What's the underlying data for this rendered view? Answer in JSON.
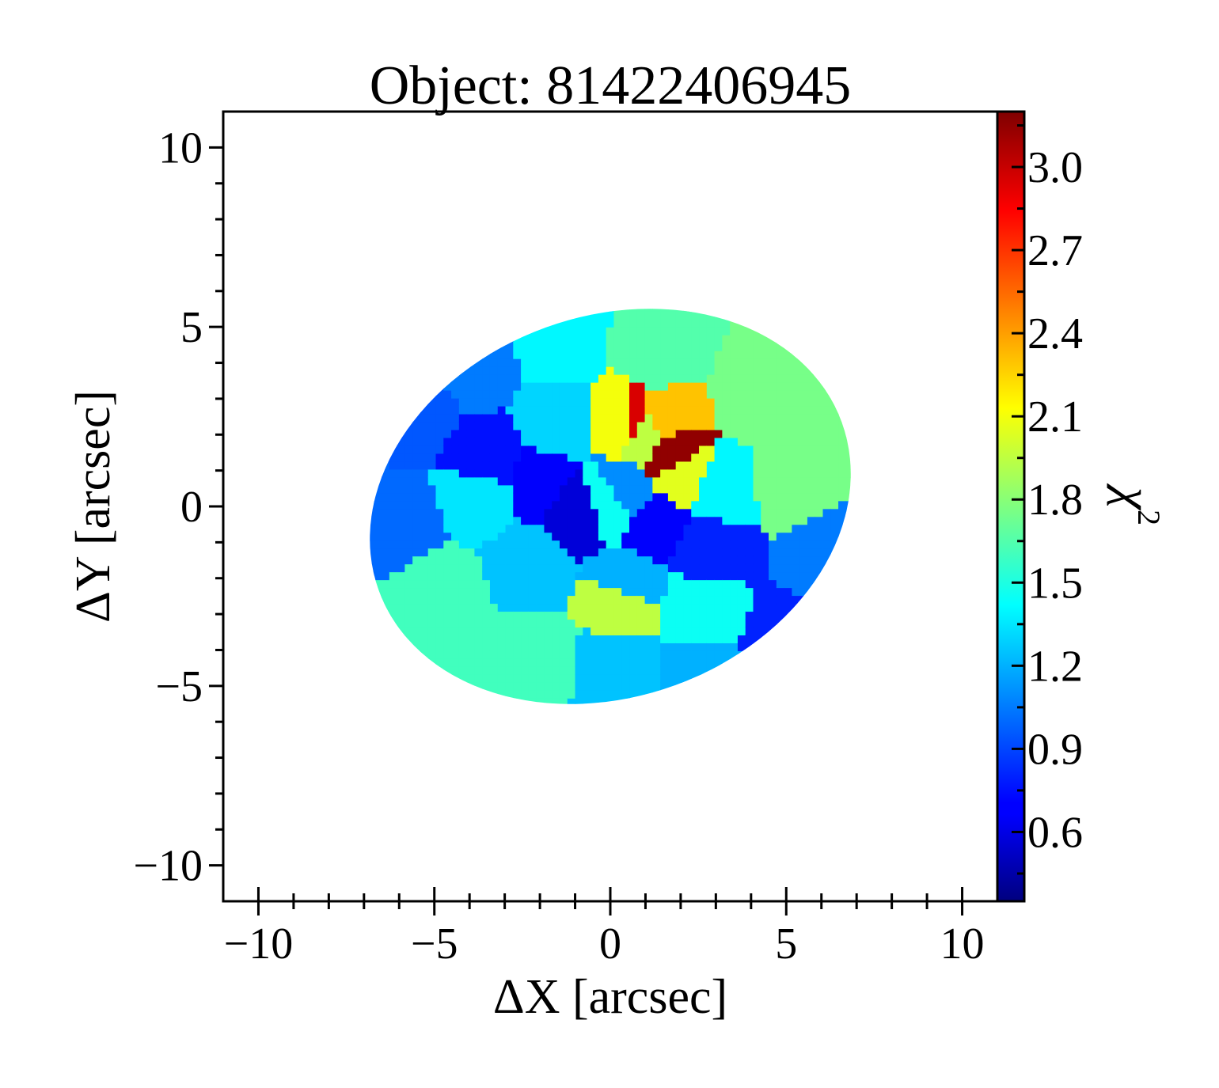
{
  "chart_data": {
    "type": "heatmap",
    "title": "Object: 81422406945",
    "xlabel": "ΔX [arcsec]",
    "ylabel": "ΔY [arcsec]",
    "colorbar_label": "χ",
    "colorbar_label_superscript": "2",
    "xlim": [
      -11,
      11
    ],
    "ylim": [
      -11,
      11
    ],
    "x_ticks": [
      -10,
      -5,
      0,
      5,
      10
    ],
    "x_tick_labels": [
      "−10",
      "−5",
      "0",
      "5",
      "10"
    ],
    "y_ticks": [
      -10,
      -5,
      0,
      5,
      10
    ],
    "y_tick_labels": [
      "−10",
      "−5",
      "0",
      "5",
      "10"
    ],
    "colorbar_range": [
      0.35,
      3.2
    ],
    "colorbar_ticks": [
      0.6,
      0.9,
      1.2,
      1.5,
      1.8,
      2.1,
      2.4,
      2.7,
      3.0
    ],
    "colorbar_tick_labels": [
      "0.6",
      "0.9",
      "1.2",
      "1.5",
      "1.8",
      "2.1",
      "2.4",
      "2.7",
      "3.0"
    ],
    "colormap": "jet",
    "map_region": {
      "shape": "ellipse",
      "center": [
        0.0,
        0.0
      ],
      "semi_major": 7.0,
      "semi_minor": 5.3,
      "angle_deg": -20
    },
    "bins": [
      {
        "x": -5.6,
        "y": 2.6,
        "value": 0.95
      },
      {
        "x": -6.0,
        "y": -0.4,
        "value": 1.0
      },
      {
        "x": -3.8,
        "y": 4.0,
        "value": 1.05
      },
      {
        "x": -1.6,
        "y": 4.5,
        "value": 1.4
      },
      {
        "x": 1.5,
        "y": 4.3,
        "value": 1.65
      },
      {
        "x": 4.2,
        "y": 3.2,
        "value": 1.75
      },
      {
        "x": 5.2,
        "y": 0.8,
        "value": 1.75
      },
      {
        "x": 6.3,
        "y": -1.5,
        "value": 1.05
      },
      {
        "x": 5.1,
        "y": -3.8,
        "value": 0.8
      },
      {
        "x": 2.6,
        "y": -4.7,
        "value": 1.2
      },
      {
        "x": 0.2,
        "y": -4.5,
        "value": 1.25
      },
      {
        "x": -2.2,
        "y": -4.2,
        "value": 1.6
      },
      {
        "x": -4.8,
        "y": -2.4,
        "value": 1.6
      },
      {
        "x": -3.5,
        "y": 1.3,
        "value": 0.75
      },
      {
        "x": -2.0,
        "y": 0.6,
        "value": 0.7
      },
      {
        "x": -1.0,
        "y": -0.1,
        "value": 0.6
      },
      {
        "x": 0.3,
        "y": 0.4,
        "value": 1.1
      },
      {
        "x": 1.4,
        "y": -0.5,
        "value": 0.7
      },
      {
        "x": 2.7,
        "y": -1.2,
        "value": 0.8
      },
      {
        "x": -1.5,
        "y": 2.4,
        "value": 1.3
      },
      {
        "x": -3.7,
        "y": 0.3,
        "value": 1.35
      },
      {
        "x": 3.0,
        "y": 0.5,
        "value": 1.4
      },
      {
        "x": -2.3,
        "y": -1.5,
        "value": 1.25
      },
      {
        "x": 0.5,
        "y": -2.3,
        "value": 1.2
      },
      {
        "x": 2.5,
        "y": -2.8,
        "value": 1.45
      },
      {
        "x": 0.4,
        "y": -2.6,
        "value": 1.95
      },
      {
        "x": 0.4,
        "y": 2.3,
        "value": 2.1
      },
      {
        "x": 0.5,
        "y": 2.3,
        "value": 2.95
      },
      {
        "x": 1.6,
        "y": 2.4,
        "value": 2.3
      },
      {
        "x": 1.7,
        "y": 1.6,
        "value": 3.15
      },
      {
        "x": 2.2,
        "y": 0.8,
        "value": 2.05
      },
      {
        "x": 1.0,
        "y": 2.0,
        "value": 1.95
      },
      {
        "x": 0.0,
        "y": 0.2,
        "value": 1.45
      }
    ]
  }
}
